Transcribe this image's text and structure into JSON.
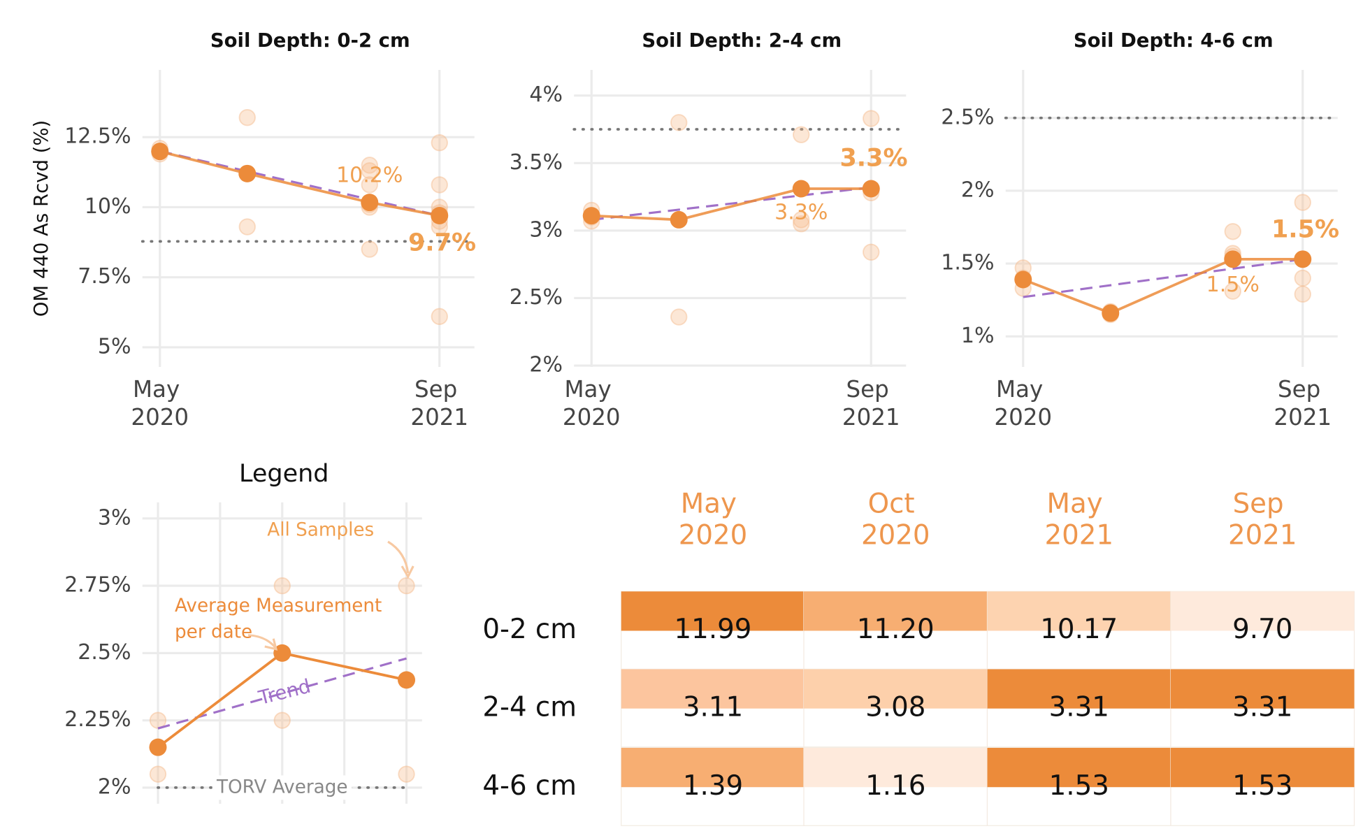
{
  "chart_data": [
    {
      "type": "line",
      "title": "Soil Depth: 0-2 cm",
      "y_label": "OM 440 As Rcvd (%)",
      "x": [
        "2020-05",
        "2020-10",
        "2021-05",
        "2021-09"
      ],
      "xlim": [
        "2020-04",
        "2021-11"
      ],
      "xticks": [
        {
          "value": "2020-05",
          "label": "May 2020"
        },
        {
          "value": "2021-09",
          "label": "Sep 2021"
        }
      ],
      "ylim": [
        4.3,
        14.9
      ],
      "yticks": [
        {
          "value": 5,
          "label": "5%"
        },
        {
          "value": 7.5,
          "label": "7.5%"
        },
        {
          "value": 10,
          "label": "10%"
        },
        {
          "value": 12.5,
          "label": "12.5%"
        }
      ],
      "grid": true,
      "average": {
        "color": "#ec8b3a",
        "values": [
          11.99,
          11.2,
          10.17,
          9.7
        ],
        "value_labels": [
          null,
          null,
          "10.2%",
          "9.7%"
        ]
      },
      "samples": {
        "color": "#f5b98a",
        "x": [
          "2020-05",
          "2020-05",
          "2020-05",
          "2020-10",
          "2020-10",
          "2021-05",
          "2021-05",
          "2021-05",
          "2021-05",
          "2021-05",
          "2021-05",
          "2021-09",
          "2021-09",
          "2021-09",
          "2021-09",
          "2021-09",
          "2021-09",
          "2021-09"
        ],
        "values": [
          12.1,
          11.9,
          12.0,
          13.2,
          9.3,
          11.5,
          11.3,
          10.8,
          10.1,
          10.0,
          8.5,
          12.3,
          10.8,
          10.0,
          9.8,
          9.5,
          9.3,
          6.1
        ]
      },
      "trend": {
        "color": "#a070c8",
        "x": [
          "2020-05",
          "2021-09"
        ],
        "values": [
          12.0,
          9.7
        ]
      },
      "reference": {
        "color": "#777777",
        "value": 8.78
      }
    },
    {
      "type": "line",
      "title": "Soil Depth: 2-4 cm",
      "x": [
        "2020-05",
        "2020-10",
        "2021-05",
        "2021-09"
      ],
      "xlim": [
        "2020-04",
        "2021-11"
      ],
      "xticks": [
        {
          "value": "2020-05",
          "label": "May 2020"
        },
        {
          "value": "2021-09",
          "label": "Sep 2021"
        }
      ],
      "ylim": [
        1.99,
        4.19
      ],
      "yticks": [
        {
          "value": 2,
          "label": "2%"
        },
        {
          "value": 2.5,
          "label": "2.5%"
        },
        {
          "value": 3,
          "label": "3%"
        },
        {
          "value": 3.5,
          "label": "3.5%"
        },
        {
          "value": 4,
          "label": "4%"
        }
      ],
      "grid": true,
      "average": {
        "color": "#ec8b3a",
        "values": [
          3.11,
          3.08,
          3.31,
          3.31
        ],
        "value_labels": [
          null,
          null,
          "3.3%",
          "3.3%"
        ]
      },
      "samples": {
        "color": "#f5b98a",
        "x": [
          "2020-05",
          "2020-05",
          "2020-05",
          "2020-10",
          "2020-10",
          "2021-05",
          "2021-05",
          "2021-05",
          "2021-09",
          "2021-09",
          "2021-09"
        ],
        "values": [
          3.15,
          3.1,
          3.07,
          3.8,
          2.36,
          3.71,
          3.05,
          3.08,
          3.83,
          3.28,
          2.84
        ]
      },
      "trend": {
        "color": "#a070c8",
        "x": [
          "2020-05",
          "2021-09"
        ],
        "values": [
          3.08,
          3.32
        ]
      },
      "reference": {
        "color": "#777777",
        "value": 3.75
      }
    },
    {
      "type": "line",
      "title": "Soil Depth: 4-6 cm",
      "x": [
        "2020-05",
        "2020-10",
        "2021-05",
        "2021-09"
      ],
      "xlim": [
        "2020-04",
        "2021-11"
      ],
      "xticks": [
        {
          "value": "2020-05",
          "label": "May 2020"
        },
        {
          "value": "2021-09",
          "label": "Sep 2021"
        }
      ],
      "ylim": [
        0.79,
        2.83
      ],
      "yticks": [
        {
          "value": 1,
          "label": "1%"
        },
        {
          "value": 1.5,
          "label": "1.5%"
        },
        {
          "value": 2,
          "label": "2%"
        },
        {
          "value": 2.5,
          "label": "2.5%"
        }
      ],
      "grid": true,
      "average": {
        "color": "#ec8b3a",
        "values": [
          1.39,
          1.16,
          1.53,
          1.53
        ],
        "value_labels": [
          null,
          null,
          "1.5%",
          "1.5%"
        ]
      },
      "samples": {
        "color": "#f5b98a",
        "x": [
          "2020-05",
          "2020-05",
          "2020-05",
          "2020-10",
          "2020-10",
          "2021-05",
          "2021-05",
          "2021-05",
          "2021-05",
          "2021-09",
          "2021-09",
          "2021-09"
        ],
        "values": [
          1.47,
          1.33,
          1.4,
          1.17,
          1.15,
          1.72,
          1.57,
          1.55,
          1.31,
          1.92,
          1.4,
          1.29
        ]
      },
      "trend": {
        "color": "#a070c8",
        "x": [
          "2020-05",
          "2021-09"
        ],
        "values": [
          1.27,
          1.53
        ]
      },
      "reference": {
        "color": "#777777",
        "value": 2.5
      }
    },
    {
      "type": "line",
      "title": "Legend",
      "x": [
        1,
        3,
        5
      ],
      "xlim": [
        0.75,
        5.25
      ],
      "xgrid": [
        1,
        2,
        3,
        4,
        5
      ],
      "ylim": [
        1.94,
        3.06
      ],
      "yticks": [
        {
          "value": 2,
          "label": "2%"
        },
        {
          "value": 2.25,
          "label": "2.25%"
        },
        {
          "value": 2.5,
          "label": "2.5%"
        },
        {
          "value": 2.75,
          "label": "2.75%"
        },
        {
          "value": 3,
          "label": "3%"
        }
      ],
      "grid": true,
      "average": {
        "color": "#ec8b3a",
        "values": [
          2.15,
          2.5,
          2.4
        ]
      },
      "samples": {
        "color": "#f5b98a",
        "x": [
          1,
          1,
          3,
          3,
          5,
          5
        ],
        "values": [
          2.25,
          2.05,
          2.75,
          2.25,
          2.75,
          2.05
        ]
      },
      "trend": {
        "color": "#a070c8",
        "x": [
          1,
          5
        ],
        "values": [
          2.22,
          2.48
        ]
      },
      "reference": {
        "color": "#777777",
        "value": 2.0,
        "label": "TORV Average"
      },
      "annotations": [
        {
          "text": "All Samples"
        },
        {
          "lines": [
            "Average Measurement",
            "per date"
          ]
        },
        {
          "text": "Trend"
        }
      ]
    },
    {
      "type": "heatmap",
      "columns": [
        "May 2020",
        "Oct 2020",
        "May 2021",
        "Sep 2021"
      ],
      "rows": [
        "0-2 cm",
        "2-4 cm",
        "4-6 cm"
      ],
      "values": [
        [
          11.99,
          11.2,
          10.17,
          9.7
        ],
        [
          3.11,
          3.08,
          3.31,
          3.31
        ],
        [
          1.39,
          1.16,
          1.53,
          1.53
        ]
      ],
      "value_labels": [
        [
          "11.99",
          "11.20",
          "10.17",
          "9.70"
        ],
        [
          "3.11",
          "3.08",
          "3.31",
          "3.31"
        ],
        [
          "1.39",
          "1.16",
          "1.53",
          "1.53"
        ]
      ],
      "cell_colors": [
        [
          "#ec8b3a",
          "#f7ae72",
          "#fdd3b0",
          "#feeadc"
        ],
        [
          "#fcc59e",
          "#fdd0ab",
          "#ec8b3a",
          "#ec8b3a"
        ],
        [
          "#f7ae72",
          "#feeadc",
          "#ec8b3a",
          "#ec8b3a"
        ]
      ],
      "header_color": "#ec8b3a"
    }
  ]
}
